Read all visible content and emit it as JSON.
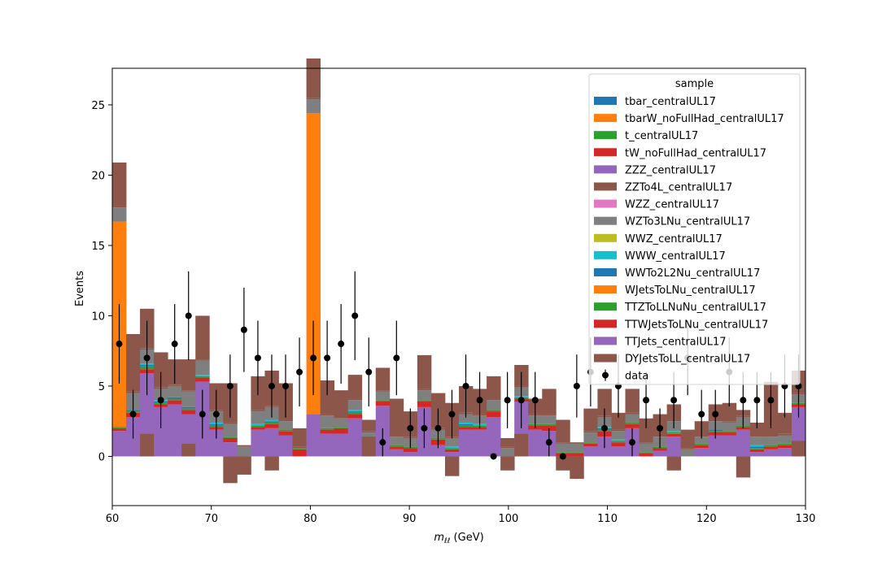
{
  "chart_data": {
    "type": "bar",
    "xlabel_main": "m",
    "xlabel_sub": "ℓℓ",
    "xlabel_unit": " (GeV)",
    "ylabel": "Events",
    "xlim": [
      60,
      130
    ],
    "ylim": [
      -3.5,
      27.6
    ],
    "x_ticks": [
      60,
      70,
      80,
      90,
      100,
      110,
      120,
      130
    ],
    "y_ticks": [
      0,
      5,
      10,
      15,
      20,
      25
    ],
    "grid": false,
    "legend_title": "sample",
    "legend_position": "top-right",
    "bin_edges": [
      60,
      61.4,
      62.8,
      64.2,
      65.6,
      67,
      68.4,
      69.8,
      71.2,
      72.6,
      74,
      75.4,
      76.8,
      78.2,
      79.6,
      81,
      82.4,
      83.8,
      85.2,
      86.6,
      88,
      89.4,
      90.8,
      92.2,
      93.6,
      95,
      96.4,
      97.8,
      99.2,
      100.6,
      102,
      103.4,
      104.8,
      106.2,
      107.6,
      109,
      110.4,
      111.8,
      113.2,
      114.6,
      116,
      117.4,
      118.8,
      120.2,
      121.6,
      123,
      124.4,
      125.8,
      127.2,
      128.6,
      130
    ],
    "stack_series": [
      {
        "name": "tbar_centralUL17",
        "color": "#1f77b4"
      },
      {
        "name": "tbarW_noFullHad_centralUL17",
        "color": "#ff7f0e"
      },
      {
        "name": "t_centralUL17",
        "color": "#2ca02c"
      },
      {
        "name": "tW_noFullHad_centralUL17",
        "color": "#d62728"
      },
      {
        "name": "ZZZ_centralUL17",
        "color": "#9467bd"
      },
      {
        "name": "ZZTo4L_centralUL17",
        "color": "#8c564b"
      },
      {
        "name": "WZZ_centralUL17",
        "color": "#e377c2"
      },
      {
        "name": "WZTo3LNu_centralUL17",
        "color": "#7f7f7f"
      },
      {
        "name": "WWZ_centralUL17",
        "color": "#bcbd22"
      },
      {
        "name": "WWW_centralUL17",
        "color": "#17becf"
      },
      {
        "name": "WWTo2L2Nu_centralUL17",
        "color": "#1f77b4"
      },
      {
        "name": "WJetsToLNu_centralUL17",
        "color": "#ff7f0e"
      },
      {
        "name": "TTZToLLNuNu_centralUL17",
        "color": "#2ca02c"
      },
      {
        "name": "TTWJetsToLNu_centralUL17",
        "color": "#d62728"
      },
      {
        "name": "TTJets_centralUL17",
        "color": "#9467bd"
      },
      {
        "name": "DYJetsToLL_centralUL17",
        "color": "#8c564b"
      }
    ],
    "stack_drawn": {
      "TTJets_centralUL17": [
        1.8,
        2.8,
        5.9,
        3.5,
        3.7,
        3.0,
        5.3,
        1.9,
        1.0,
        0.0,
        1.9,
        2.0,
        1.5,
        0.0,
        3.0,
        1.6,
        1.6,
        2.7,
        1.0,
        3.6,
        0.5,
        0.3,
        3.5,
        0.8,
        0.3,
        1.9,
        1.9,
        2.8,
        0.0,
        3.9,
        1.9,
        1.8,
        0.0,
        0.0,
        0.7,
        1.4,
        0.7,
        2.0,
        0.0,
        0.4,
        1.4,
        0.0,
        0.6,
        1.5,
        1.5,
        1.9,
        0.3,
        0.5,
        0.6,
        3.5
      ],
      "TTWJetsToLNu_centralUL17": [
        0.2,
        0.3,
        0.3,
        0.2,
        0.3,
        0.3,
        0.3,
        0.2,
        0.3,
        0.0,
        0.2,
        0.3,
        0.3,
        0.5,
        0.0,
        0.3,
        0.4,
        0.3,
        0.0,
        0.3,
        0.2,
        0.3,
        0.4,
        0.4,
        0.2,
        0.2,
        0.2,
        0.4,
        0.0,
        0.2,
        0.3,
        0.4,
        0.2,
        0.2,
        0.2,
        0.4,
        0.3,
        0.3,
        0.2,
        0.2,
        0.2,
        0.0,
        0.2,
        0.2,
        0.2,
        0.2,
        0.2,
        0.2,
        0.2,
        0.2
      ],
      "TTZToLLNuNu_centralUL17": [
        0.1,
        0.1,
        0.2,
        0.1,
        0.1,
        0.1,
        0.1,
        0.1,
        0.1,
        0.0,
        0.1,
        0.1,
        0.1,
        0.1,
        0.0,
        0.1,
        0.1,
        0.1,
        0.1,
        0.1,
        0.1,
        0.1,
        0.1,
        0.1,
        0.1,
        0.1,
        0.1,
        0.1,
        0.0,
        0.1,
        0.1,
        0.1,
        0.1,
        0.1,
        0.1,
        0.1,
        0.1,
        0.1,
        0.1,
        0.1,
        0.1,
        0.0,
        0.1,
        0.1,
        0.1,
        0.1,
        0.1,
        0.1,
        0.1,
        0.1
      ],
      "WJetsToLNu_centralUL17": [
        14.6,
        0.0,
        0.0,
        0.0,
        0.0,
        0.0,
        0.0,
        0.0,
        0.0,
        0.0,
        0.0,
        0.0,
        0.0,
        0.0,
        21.4,
        0.0,
        0.0,
        0.0,
        0.0,
        0.0,
        0.0,
        0.0,
        0.0,
        0.0,
        0.0,
        0.0,
        0.0,
        0.0,
        0.0,
        0.0,
        0.0,
        0.0,
        0.0,
        0.0,
        0.0,
        0.0,
        0.0,
        0.0,
        0.0,
        0.0,
        0.0,
        0.0,
        0.0,
        0.0,
        0.0,
        0.0,
        0.0,
        0.0,
        0.0,
        0.0
      ],
      "WWTo2L2Nu_centralUL17": [
        0.0,
        0.1,
        0.1,
        0.1,
        0.1,
        0.1,
        0.0,
        0.1,
        0.0,
        0.0,
        0.0,
        0.1,
        0.0,
        0.0,
        0.0,
        0.0,
        0.0,
        0.1,
        0.0,
        0.0,
        0.0,
        0.0,
        0.0,
        0.0,
        0.0,
        0.1,
        0.0,
        0.0,
        0.0,
        0.0,
        0.0,
        0.0,
        0.0,
        0.0,
        0.0,
        0.1,
        0.0,
        0.0,
        0.0,
        0.0,
        0.0,
        0.0,
        0.0,
        0.1,
        0.0,
        0.0,
        0.1,
        0.0,
        0.0,
        0.0
      ],
      "WWW_centralUL17": [
        0.0,
        0.0,
        0.1,
        0.1,
        0.0,
        0.0,
        0.1,
        0.1,
        0.0,
        0.0,
        0.1,
        0.1,
        0.0,
        0.0,
        0.0,
        0.0,
        0.0,
        0.1,
        0.0,
        0.0,
        0.0,
        0.0,
        0.0,
        0.0,
        0.1,
        0.1,
        0.1,
        0.0,
        0.0,
        0.1,
        0.0,
        0.0,
        0.0,
        0.0,
        0.0,
        0.1,
        0.1,
        0.0,
        0.0,
        0.0,
        0.1,
        0.0,
        0.0,
        0.0,
        0.0,
        0.0,
        0.1,
        0.0,
        0.0,
        0.0
      ],
      "WWZ_centralUL17": [
        0.0,
        0.0,
        0.0,
        0.0,
        0.0,
        0.0,
        0.0,
        0.0,
        0.0,
        0.0,
        0.0,
        0.0,
        0.0,
        0.0,
        0.0,
        0.0,
        0.0,
        0.0,
        0.0,
        0.0,
        0.0,
        0.0,
        0.0,
        0.0,
        0.0,
        0.0,
        0.0,
        0.0,
        0.0,
        0.0,
        0.0,
        0.0,
        0.0,
        0.0,
        0.0,
        0.0,
        0.0,
        0.0,
        0.0,
        0.0,
        0.0,
        0.0,
        0.0,
        0.0,
        0.0,
        0.0,
        0.0,
        0.0,
        0.0,
        0.0
      ],
      "WZTo3LNu_centralUL17": [
        1.0,
        1.2,
        1.0,
        0.8,
        0.8,
        1.1,
        1.0,
        0.8,
        0.9,
        0.7,
        0.9,
        0.9,
        0.6,
        0.0,
        1.0,
        0.9,
        0.6,
        0.7,
        0.6,
        0.6,
        0.6,
        0.6,
        0.7,
        0.6,
        0.6,
        0.6,
        0.6,
        0.7,
        0.6,
        0.6,
        0.6,
        0.6,
        0.6,
        0.6,
        0.7,
        0.7,
        0.6,
        0.6,
        0.6,
        0.7,
        0.7,
        0.5,
        0.5,
        0.6,
        0.6,
        0.6,
        0.6,
        0.6,
        0.6,
        0.6
      ],
      "WZZ_centralUL17": [
        0.0,
        0.0,
        0.0,
        0.0,
        0.0,
        0.0,
        0.0,
        0.0,
        0.0,
        0.0,
        0.0,
        0.0,
        0.0,
        0.0,
        0.0,
        0.0,
        0.0,
        0.0,
        0.0,
        0.0,
        0.0,
        0.0,
        0.0,
        0.0,
        0.0,
        0.0,
        0.0,
        0.0,
        0.0,
        0.0,
        0.0,
        0.0,
        0.0,
        0.0,
        0.0,
        0.0,
        0.0,
        0.0,
        0.0,
        0.0,
        0.0,
        0.0,
        0.0,
        0.0,
        0.0,
        0.0,
        0.0,
        0.0,
        0.0,
        0.0
      ],
      "ZZTo4L_centralUL17": [
        0.1,
        0.1,
        0.1,
        0.1,
        0.1,
        0.1,
        0.1,
        0.1,
        0.1,
        0.1,
        0.1,
        0.1,
        0.1,
        0.1,
        0.1,
        0.1,
        0.1,
        0.1,
        0.1,
        0.1,
        0.1,
        0.1,
        0.1,
        0.1,
        0.1,
        0.1,
        0.1,
        0.1,
        0.1,
        0.1,
        0.1,
        0.1,
        0.1,
        0.1,
        0.1,
        0.1,
        0.1,
        0.1,
        0.1,
        0.1,
        0.1,
        0.1,
        0.1,
        0.1,
        0.1,
        0.1,
        0.1,
        0.1,
        0.1,
        0.1
      ],
      "DYJetsToLL_centralUL17": [
        3.1,
        4.1,
        2.8,
        2.5,
        1.8,
        2.2,
        3.1,
        1.9,
        2.8,
        0.0,
        2.4,
        2.5,
        2.6,
        1.3,
        2.8,
        2.4,
        1.9,
        1.7,
        0.8,
        1.6,
        2.6,
        1.8,
        2.4,
        2.5,
        2.4,
        1.9,
        1.8,
        1.6,
        0.6,
        1.5,
        1.1,
        1.8,
        1.6,
        0.0,
        1.6,
        1.9,
        1.2,
        1.7,
        1.7,
        1.5,
        1.1,
        1.3,
        1.0,
        1.1,
        1.3,
        0.4,
        0.9,
        3.8,
        1.5,
        1.6
      ]
    },
    "signed_components": {
      "TTJets_centralUL17_base": [
        0,
        0,
        0,
        0,
        0,
        0,
        0,
        0,
        0,
        0,
        0,
        0,
        0,
        0,
        0,
        0,
        0,
        0,
        0,
        0,
        0,
        0,
        0,
        0,
        0,
        0,
        0,
        0,
        0,
        0,
        0,
        0,
        0,
        0,
        0,
        0,
        0,
        0,
        0,
        0,
        0,
        0,
        0,
        0,
        0,
        0,
        0,
        0,
        0,
        0
      ],
      "DYJetsToLL_centralUL17_offset": [
        0,
        0,
        1.6,
        0,
        0,
        0.9,
        0,
        0,
        -1.9,
        -1.3,
        0,
        -1.0,
        0,
        0,
        0,
        0,
        0,
        0,
        1.4,
        0,
        0,
        0,
        0,
        0,
        -1.4,
        0,
        0,
        0,
        -1.0,
        1.6,
        0,
        0,
        -1.0,
        -1.6,
        0,
        0,
        0,
        0,
        0,
        0,
        -1.0,
        0,
        0,
        0,
        0,
        -1.5,
        0,
        0,
        0,
        1.1
      ]
    },
    "data_points": {
      "name": "data",
      "x": [
        60.7,
        62.1,
        63.5,
        64.9,
        66.3,
        67.7,
        69.1,
        70.5,
        71.9,
        73.3,
        74.7,
        76.1,
        77.5,
        78.9,
        80.3,
        81.7,
        83.1,
        84.5,
        85.9,
        87.3,
        88.7,
        90.1,
        91.5,
        92.9,
        94.3,
        95.7,
        97.1,
        98.5,
        99.9,
        101.3,
        102.7,
        104.1,
        105.5,
        106.9,
        108.3,
        109.7,
        111.1,
        112.5,
        113.9,
        115.3,
        116.7,
        118.1,
        119.5,
        120.9,
        122.3,
        123.7,
        125.1,
        126.5,
        127.9,
        129.3
      ],
      "y": [
        8,
        3,
        7,
        4,
        8,
        10,
        3,
        3,
        5,
        9,
        7,
        5,
        5,
        6,
        7,
        7,
        8,
        10,
        6,
        1,
        7,
        2,
        2,
        2,
        3,
        5,
        4,
        0,
        4,
        4,
        4,
        1,
        0,
        5,
        6,
        2,
        5,
        1,
        4,
        2,
        4,
        7,
        3,
        3,
        6,
        4,
        4,
        4,
        5,
        5
      ],
      "err": [
        2.83,
        1.73,
        2.65,
        2.0,
        2.83,
        3.16,
        1.73,
        1.73,
        2.24,
        3.0,
        2.65,
        2.24,
        2.24,
        2.45,
        2.65,
        2.65,
        2.83,
        3.16,
        2.45,
        1.0,
        2.65,
        1.41,
        1.41,
        1.41,
        1.73,
        2.24,
        2.0,
        0.0,
        2.0,
        2.0,
        2.0,
        1.0,
        0.0,
        2.24,
        2.45,
        1.41,
        2.24,
        1.0,
        2.0,
        1.41,
        2.0,
        2.65,
        1.73,
        1.73,
        2.45,
        2.0,
        2.0,
        2.0,
        2.24,
        2.24
      ]
    }
  }
}
